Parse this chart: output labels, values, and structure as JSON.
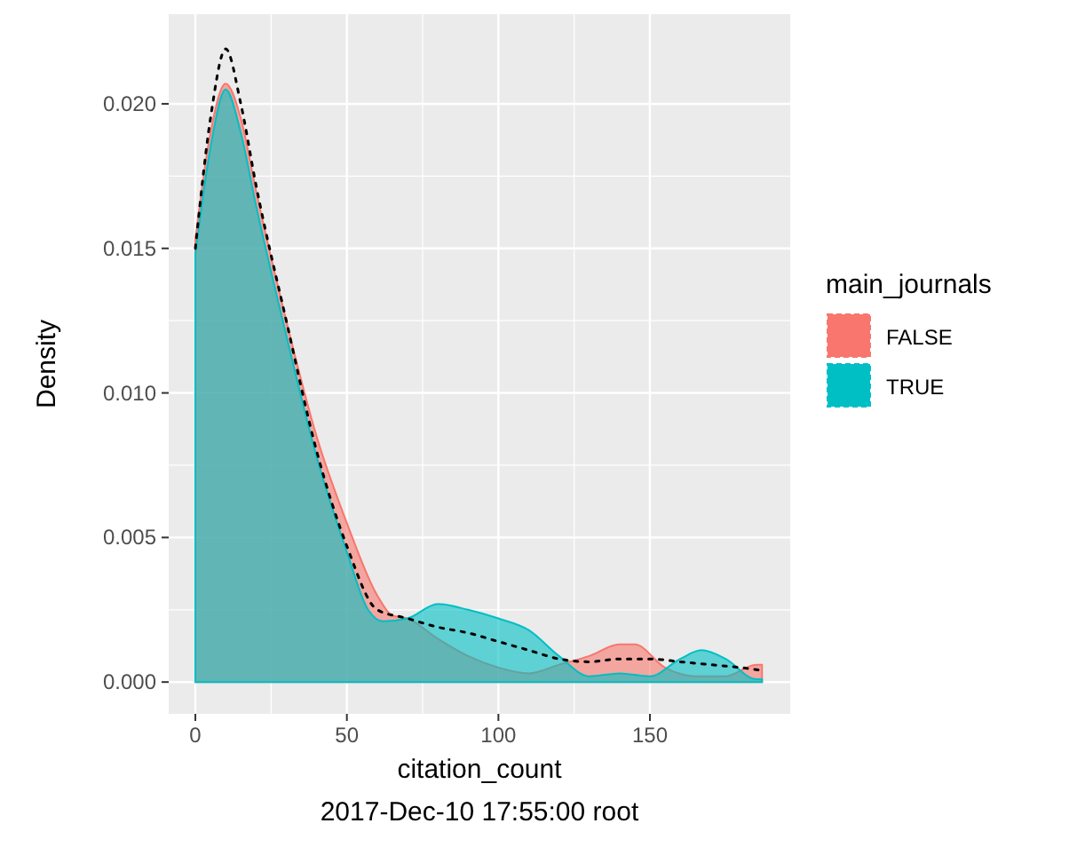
{
  "chart_data": {
    "type": "area",
    "xlabel": "citation_count",
    "ylabel": "Density",
    "legend_title": "main_journals",
    "legend": "right",
    "grid": true,
    "xlim": [
      -8.8,
      196.3
    ],
    "xticks": [
      0,
      50,
      100,
      150
    ],
    "ylim": [
      -0.0011,
      0.0231
    ],
    "yticks": [
      {
        "value": 0,
        "label": "0.000"
      },
      {
        "value": 0.005,
        "label": "0.005"
      },
      {
        "value": 0.01,
        "label": "0.010"
      },
      {
        "value": 0.015,
        "label": "0.015"
      },
      {
        "value": 0.02,
        "label": "0.020"
      }
    ],
    "annotations": [
      "2017-Dec-10 17:55:00 root"
    ],
    "series": [
      {
        "name": "FALSE",
        "color": "#f8766d",
        "x": [
          0,
          5,
          10,
          15,
          20,
          30,
          40,
          50,
          60,
          65,
          70,
          80,
          90,
          100,
          110,
          120,
          130,
          140,
          145,
          155,
          165,
          175,
          185,
          187
        ],
        "values": [
          0.0153,
          0.019,
          0.0207,
          0.0195,
          0.017,
          0.0125,
          0.0085,
          0.0055,
          0.003,
          0.0023,
          0.0022,
          0.0015,
          0.0009,
          0.0005,
          0.0003,
          0.0006,
          0.0009,
          0.0013,
          0.0013,
          0.0005,
          0.0002,
          0.0002,
          0.0006,
          0.0006
        ]
      },
      {
        "name": "TRUE",
        "color": "#00bfc4",
        "x": [
          0,
          5,
          10,
          15,
          20,
          30,
          40,
          50,
          57,
          62,
          70,
          80,
          90,
          100,
          110,
          120,
          130,
          140,
          150,
          160,
          167,
          175,
          185,
          187
        ],
        "values": [
          0.0148,
          0.0185,
          0.0205,
          0.019,
          0.0165,
          0.012,
          0.0078,
          0.0045,
          0.0025,
          0.0021,
          0.0022,
          0.0027,
          0.0025,
          0.0022,
          0.0018,
          0.0009,
          0.0002,
          0.0003,
          0.0002,
          0.0008,
          0.0011,
          0.0008,
          0.0001,
          0.0001
        ]
      },
      {
        "type": "line",
        "color": "#000000",
        "line_style": "dotted",
        "x": [
          0,
          5,
          10,
          15,
          20,
          30,
          40,
          50,
          60,
          70,
          80,
          90,
          100,
          110,
          120,
          130,
          140,
          150,
          160,
          170,
          180,
          187
        ],
        "values": [
          0.015,
          0.0195,
          0.0219,
          0.02,
          0.0172,
          0.0125,
          0.008,
          0.0047,
          0.0025,
          0.0022,
          0.0019,
          0.0017,
          0.0014,
          0.0011,
          0.0008,
          0.0007,
          0.0008,
          0.0008,
          0.0007,
          0.0006,
          0.0005,
          0.0004
        ]
      }
    ]
  }
}
